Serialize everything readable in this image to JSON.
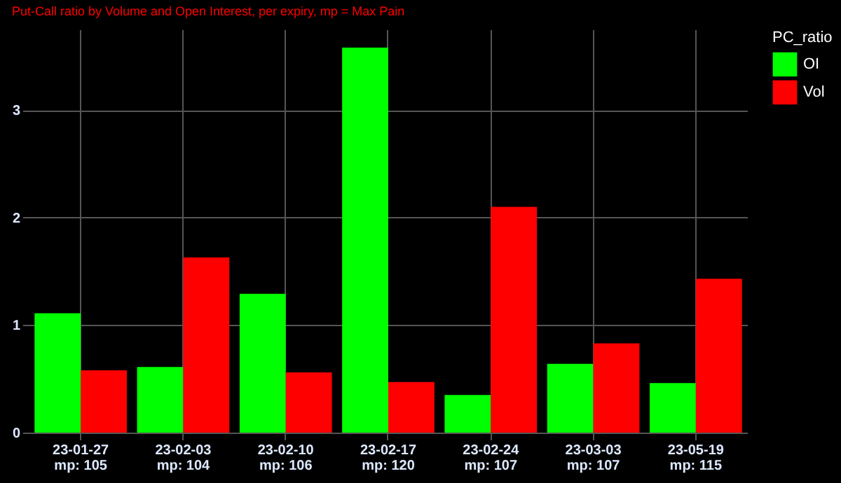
{
  "chart_data": {
    "type": "bar",
    "subtitle": "Put-Call ratio by Volume and Open Interest, per expiry, mp = Max Pain",
    "legend_title": "PC_ratio",
    "categories": [
      "23-01-27\nmp: 105",
      "23-02-03\nmp: 104",
      "23-02-10\nmp: 106",
      "23-02-17\nmp: 120",
      "23-02-24\nmp: 107",
      "23-03-03\nmp: 107",
      "23-05-19\nmp: 115"
    ],
    "series": [
      {
        "name": "OI",
        "color": "#00ff00",
        "values": [
          1.11,
          0.61,
          1.29,
          3.58,
          0.35,
          0.64,
          0.46
        ]
      },
      {
        "name": "Vol",
        "color": "#ff0000",
        "values": [
          0.58,
          1.63,
          0.56,
          0.47,
          2.1,
          0.83,
          1.43
        ]
      }
    ],
    "ylim": [
      0,
      3.75
    ],
    "yticks": [
      0,
      1,
      2,
      3
    ],
    "grid": true,
    "legend": "right"
  }
}
